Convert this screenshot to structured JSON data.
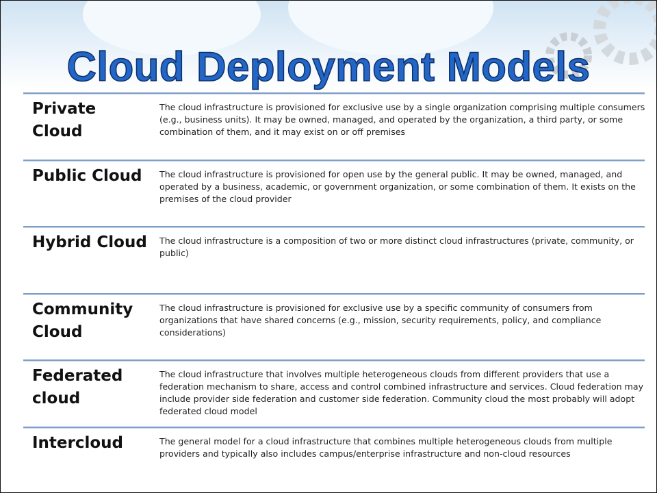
{
  "title": "Cloud Deployment Models",
  "rows": [
    {
      "term": "Private Cloud",
      "description": "The cloud infrastructure is provisioned for exclusive use by a single organization comprising multiple consumers (e.g., business units). It may be owned, managed, and operated by the organization, a third party, or some combination of them, and it may exist on or off premises"
    },
    {
      "term": "Public Cloud",
      "description": "The cloud infrastructure is provisioned for open use by the general public. It may be owned, managed, and operated by a business, academic, or government organization, or some combination of them. It exists on the premises of the cloud provider"
    },
    {
      "term": "Hybrid Cloud",
      "description": "The cloud infrastructure is a composition of two or more distinct cloud infrastructures (private, community, or public)"
    },
    {
      "term": "Community Cloud",
      "description": "The cloud infrastructure is provisioned for exclusive use by a specific community of consumers from organizations that have shared concerns (e.g., mission, security requirements, policy, and compliance considerations)"
    },
    {
      "term": "Federated cloud",
      "description": "The cloud infrastructure that involves multiple heterogeneous clouds from different providers that use a federation mechanism to share, access and control combined infrastructure and services. Cloud federation may include provider side federation and customer side federation. Community cloud the most probably will adopt federated cloud model"
    },
    {
      "term": "Intercloud",
      "description": "The general model for a cloud infrastructure that combines multiple heterogeneous clouds from multiple providers and typically also includes campus/enterprise infrastructure and non-cloud resources"
    }
  ]
}
